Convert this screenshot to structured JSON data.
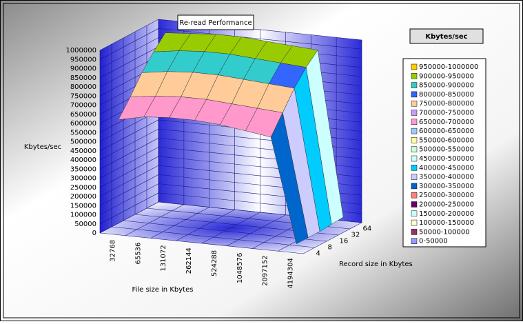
{
  "chart_data": {
    "type": "surface",
    "title": "Re-read Performance",
    "y_label": "Kbytes/sec",
    "x_label": "File size in Kbytes",
    "z_label": "Record size in Kbytes",
    "legend_title": "Kbytes/sec",
    "categories": [
      "32768",
      "65536",
      "131072",
      "262144",
      "524288",
      "1048576",
      "2097152",
      "4194304"
    ],
    "series": [
      {
        "name": "4",
        "values": [
          610000,
          640000,
          650000,
          650000,
          640000,
          620000,
          600000,
          30000
        ]
      },
      {
        "name": "8",
        "values": [
          700000,
          720000,
          730000,
          730000,
          720000,
          710000,
          700000,
          30000
        ]
      },
      {
        "name": "16",
        "values": [
          800000,
          820000,
          830000,
          830000,
          820000,
          810000,
          800000,
          30000
        ]
      },
      {
        "name": "32",
        "values": [
          880000,
          900000,
          910000,
          910000,
          900000,
          890000,
          880000,
          35000
        ]
      },
      {
        "name": "64",
        "values": [
          950000,
          960000,
          970000,
          970000,
          960000,
          950000,
          940000,
          40000
        ]
      }
    ],
    "ylim": [
      0,
      1000000
    ],
    "yticks": [
      0,
      50000,
      100000,
      150000,
      200000,
      250000,
      300000,
      350000,
      400000,
      450000,
      500000,
      550000,
      600000,
      650000,
      700000,
      750000,
      800000,
      850000,
      900000,
      950000,
      1000000
    ],
    "grid": true,
    "bands": [
      {
        "from": 950000,
        "to": 1000000,
        "label": "950000-1000000",
        "color": "#ffcc00"
      },
      {
        "from": 900000,
        "to": 950000,
        "label": "900000-950000",
        "color": "#99cc00"
      },
      {
        "from": 850000,
        "to": 900000,
        "label": "850000-900000",
        "color": "#33cccc"
      },
      {
        "from": 800000,
        "to": 850000,
        "label": "800000-850000",
        "color": "#3366ff"
      },
      {
        "from": 750000,
        "to": 800000,
        "label": "750000-800000",
        "color": "#ffcc99"
      },
      {
        "from": 700000,
        "to": 750000,
        "label": "700000-750000",
        "color": "#cc99ff"
      },
      {
        "from": 650000,
        "to": 700000,
        "label": "650000-700000",
        "color": "#ff99cc"
      },
      {
        "from": 600000,
        "to": 650000,
        "label": "600000-650000",
        "color": "#99ccff"
      },
      {
        "from": 550000,
        "to": 600000,
        "label": "550000-600000",
        "color": "#ffff99"
      },
      {
        "from": 500000,
        "to": 550000,
        "label": "500000-550000",
        "color": "#ccffcc"
      },
      {
        "from": 450000,
        "to": 500000,
        "label": "450000-500000",
        "color": "#ccffff"
      },
      {
        "from": 400000,
        "to": 450000,
        "label": "400000-450000",
        "color": "#00ccff"
      },
      {
        "from": 350000,
        "to": 400000,
        "label": "350000-400000",
        "color": "#ccccff"
      },
      {
        "from": 300000,
        "to": 350000,
        "label": "300000-350000",
        "color": "#0066cc"
      },
      {
        "from": 250000,
        "to": 300000,
        "label": "250000-300000",
        "color": "#ff8080"
      },
      {
        "from": 200000,
        "to": 250000,
        "label": "200000-250000",
        "color": "#660066"
      },
      {
        "from": 150000,
        "to": 200000,
        "label": "150000-200000",
        "color": "#ccffff"
      },
      {
        "from": 100000,
        "to": 150000,
        "label": "100000-150000",
        "color": "#ffffcc"
      },
      {
        "from": 50000,
        "to": 100000,
        "label": "50000-100000",
        "color": "#993366"
      },
      {
        "from": 0,
        "to": 50000,
        "label": "0-50000",
        "color": "#9999ff"
      }
    ]
  }
}
